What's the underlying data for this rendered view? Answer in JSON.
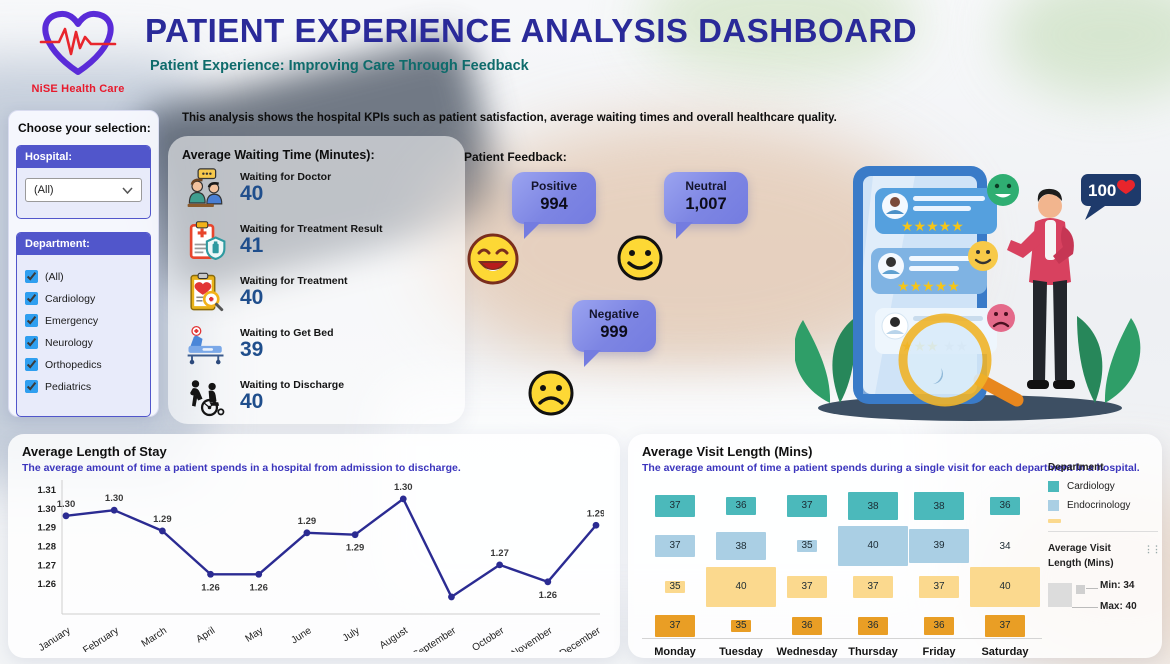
{
  "header": {
    "logo_text": "NiSE Health Care",
    "title": "PATIENT EXPERIENCE ANALYSIS DASHBOARD",
    "subtitle": "Patient Experience: Improving Care Through Feedback"
  },
  "sidebar": {
    "title": "Choose your selection:",
    "hospital": {
      "label": "Hospital:",
      "selected": "(All)"
    },
    "department": {
      "label": "Department:",
      "all_checked": true,
      "options": [
        "(All)",
        "Cardiology",
        "Emergency",
        "Neurology",
        "Orthopedics",
        "Pediatrics"
      ]
    }
  },
  "main": {
    "description": "This analysis shows the hospital KPIs such as patient satisfaction, average waiting times and overall healthcare quality.",
    "waiting": {
      "title": "Average Waiting Time (Minutes):",
      "items": [
        {
          "label": "Waiting for Doctor",
          "value": "40",
          "icon": "doctor-consultation-icon"
        },
        {
          "label": "Waiting for Treatment Result",
          "value": "41",
          "icon": "medical-report-shield-icon"
        },
        {
          "label": "Waiting for Treatment",
          "value": "40",
          "icon": "diagnosis-clipboard-icon"
        },
        {
          "label": "Waiting to Get Bed",
          "value": "39",
          "icon": "hospital-bed-icon"
        },
        {
          "label": "Waiting to Discharge",
          "value": "40",
          "icon": "wheelchair-discharge-icon"
        }
      ]
    },
    "feedback": {
      "title": "Patient Feedback:",
      "items": [
        {
          "label": "Positive",
          "value": "994",
          "emoji": "laughing-face"
        },
        {
          "label": "Neutral",
          "value": "1,007",
          "emoji": "smiling-face"
        },
        {
          "label": "Negative",
          "value": "999",
          "emoji": "sad-face"
        }
      ]
    },
    "illustration": {
      "badge_text": "100"
    }
  },
  "chart_data": [
    {
      "type": "line",
      "title": "Average Length of Stay",
      "subtitle": "The average amount of time a patient spends in a hospital from admission to discharge.",
      "categories": [
        "January",
        "February",
        "March",
        "April",
        "May",
        "June",
        "July",
        "August",
        "September",
        "October",
        "November",
        "December"
      ],
      "values": [
        1.3,
        1.3,
        1.29,
        1.26,
        1.26,
        1.29,
        1.29,
        1.3,
        1.25,
        1.27,
        1.26,
        1.29
      ],
      "point_labels": [
        "1.30",
        "1.30",
        "1.29",
        "1.26",
        "1.26",
        "1.29",
        "1.29",
        "1.30",
        "",
        "1.27",
        "1.26",
        "1.29"
      ],
      "label_side": [
        "above",
        "above",
        "above",
        "below",
        "below",
        "above",
        "below",
        "above",
        "none",
        "above",
        "below",
        "above"
      ],
      "plot_values": [
        1.296,
        1.299,
        1.288,
        1.265,
        1.265,
        1.287,
        1.286,
        1.305,
        1.253,
        1.27,
        1.261,
        1.291
      ],
      "yticks": [
        "1.31",
        "1.30",
        "1.29",
        "1.28",
        "1.27",
        "1.26"
      ],
      "ytick_values": [
        1.31,
        1.3,
        1.29,
        1.28,
        1.27,
        1.26
      ],
      "ylim": [
        1.245,
        1.315
      ],
      "line_color": "#2b2b92",
      "grid": false,
      "xlabel": "",
      "ylabel": ""
    },
    {
      "type": "heatmap",
      "title": "Average Visit Length (Mins)",
      "subtitle": "The average amount of time a patient spends during a single visit for each department in a hospital.",
      "categories": [
        "Monday",
        "Tuesday",
        "Wednesday",
        "Thursday",
        "Friday",
        "Saturday"
      ],
      "series": [
        {
          "name": "Cardiology",
          "color": "#4bb9bb",
          "values": [
            37,
            36,
            37,
            38,
            38,
            36
          ]
        },
        {
          "name": "Endocrinology",
          "color": "#aacfe4",
          "values": [
            37,
            38,
            35,
            40,
            39,
            34
          ]
        },
        {
          "name": "",
          "color": "#fbd98e",
          "values": [
            35,
            40,
            37,
            37,
            37,
            40
          ]
        },
        {
          "name": "",
          "color": "#e99e25",
          "values": [
            37,
            35,
            36,
            36,
            36,
            37
          ]
        }
      ],
      "legend_title": "Department",
      "legend_position": "right",
      "size_range": [
        34,
        40
      ],
      "size_legend": {
        "title_line1": "Average Visit",
        "title_line2": "Length (Mins)",
        "min_label": "Min: 34",
        "max_label": "Max: 40"
      }
    }
  ]
}
